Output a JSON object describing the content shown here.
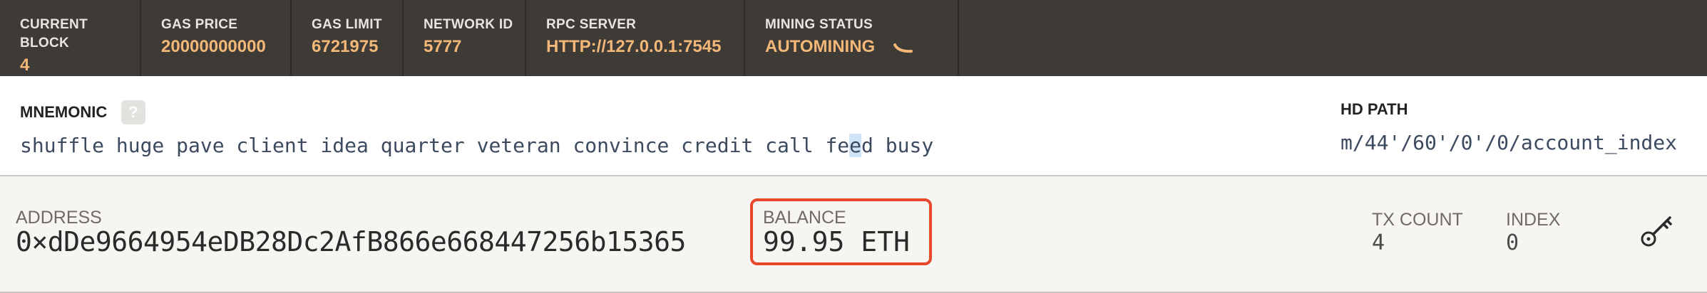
{
  "stats": [
    {
      "label": "CURRENT BLOCK",
      "value": "4"
    },
    {
      "label": "GAS PRICE",
      "value": "20000000000"
    },
    {
      "label": "GAS LIMIT",
      "value": "6721975"
    },
    {
      "label": "NETWORK ID",
      "value": "5777"
    },
    {
      "label": "RPC SERVER",
      "value": "HTTP://127.0.0.1:7545"
    },
    {
      "label": "MINING STATUS",
      "value": "AUTOMINING"
    }
  ],
  "mnemonic": {
    "label": "MNEMONIC",
    "help": "?",
    "words_before": "shuffle huge pave client idea quarter veteran convince credit call fe",
    "words_highlight": "e",
    "words_after": "d busy"
  },
  "hd_path": {
    "label": "HD PATH",
    "value": "m/44'/60'/0'/0/account_index"
  },
  "account": {
    "address_label": "ADDRESS",
    "address": "0×dDe9664954eDB28Dc2AfB866e668447256b15365",
    "balance_label": "BALANCE",
    "balance": "99.95 ETH",
    "tx_count_label": "TX COUNT",
    "tx_count": "4",
    "index_label": "INDEX",
    "index": "0",
    "action_icon": "key-icon"
  },
  "colors": {
    "topbar_bg": "#3e3a36",
    "stat_value": "#f3b878",
    "highlight_border": "#e7472a",
    "account_bg": "#f7f5f1"
  }
}
